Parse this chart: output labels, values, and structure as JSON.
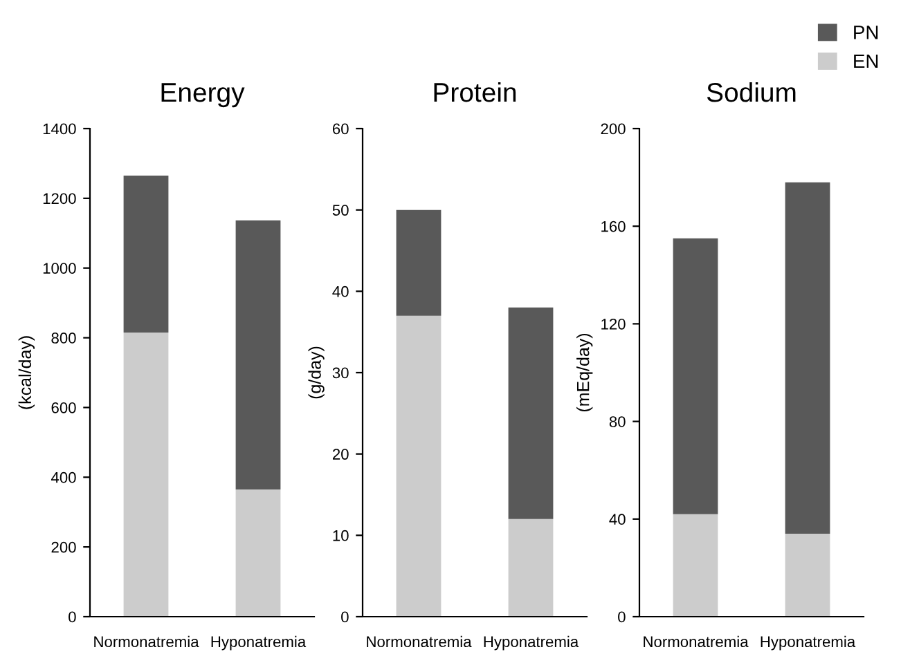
{
  "chart_data": [
    {
      "type": "bar",
      "title": "Energy",
      "ylabel": "(kcal/day)",
      "categories": [
        "Normonatremia",
        "Hyponatremia"
      ],
      "stacked": true,
      "series": [
        {
          "name": "EN",
          "color": "#cccccc",
          "values": [
            815,
            365
          ]
        },
        {
          "name": "PN",
          "color": "#595959",
          "values": [
            450,
            772
          ]
        }
      ],
      "ylim": [
        0,
        1400
      ],
      "yticks": [
        0,
        200,
        400,
        600,
        800,
        1000,
        1200,
        1400
      ],
      "grid": false,
      "legend": "top right"
    },
    {
      "type": "bar",
      "title": "Protein",
      "ylabel": "(g/day)",
      "categories": [
        "Normonatremia",
        "Hyponatremia"
      ],
      "stacked": true,
      "series": [
        {
          "color": "#cccccc",
          "values": [
            37,
            12
          ]
        },
        {
          "color": "#595959",
          "values": [
            13,
            26
          ]
        }
      ],
      "ylim": [
        0,
        60
      ],
      "yticks": [
        0,
        10,
        20,
        30,
        40,
        50,
        60
      ],
      "grid": false
    },
    {
      "type": "bar",
      "title": "Sodium",
      "ylabel": "(mEq/day)",
      "categories": [
        "Normonatremia",
        "Hyponatremia"
      ],
      "stacked": true,
      "series": [
        {
          "color": "#cccccc",
          "values": [
            42,
            34
          ]
        },
        {
          "color": "#595959",
          "values": [
            113,
            144
          ]
        }
      ],
      "ylim": [
        0,
        200
      ],
      "yticks": [
        0,
        40,
        80,
        120,
        160,
        200
      ],
      "grid": false
    }
  ]
}
